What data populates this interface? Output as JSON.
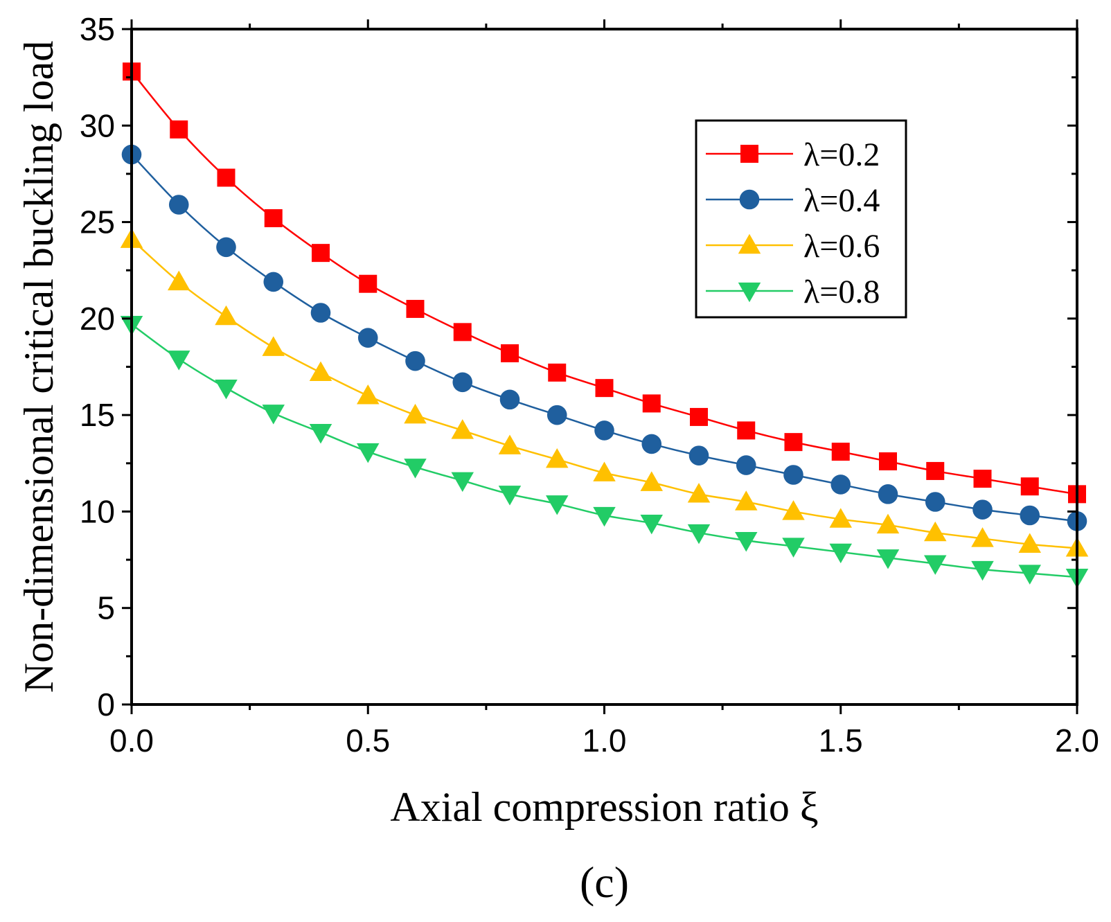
{
  "chart_data": {
    "type": "line",
    "title": "",
    "xlabel": "Axial compression ratio ξ",
    "ylabel": "Non-dimensional critical buckling load",
    "panel_label": "(c)",
    "xlim": [
      0.0,
      2.0
    ],
    "ylim": [
      0,
      35
    ],
    "x_ticks": [
      0.0,
      0.5,
      1.0,
      1.5,
      2.0
    ],
    "x_tick_labels": [
      "0.0",
      "0.5",
      "1.0",
      "1.5",
      "2.0"
    ],
    "y_ticks": [
      0,
      5,
      10,
      15,
      20,
      25,
      30,
      35
    ],
    "y_tick_labels": [
      "0",
      "5",
      "10",
      "15",
      "20",
      "25",
      "30",
      "35"
    ],
    "grid": false,
    "legend_position": "top-right",
    "x": [
      0.0,
      0.1,
      0.2,
      0.3,
      0.4,
      0.5,
      0.6,
      0.7,
      0.8,
      0.9,
      1.0,
      1.1,
      1.2,
      1.3,
      1.4,
      1.5,
      1.6,
      1.7,
      1.8,
      1.9,
      2.0
    ],
    "series": [
      {
        "name": "λ=0.2",
        "color": "#ff0000",
        "marker": "square",
        "values": [
          32.8,
          29.8,
          27.3,
          25.2,
          23.4,
          21.8,
          20.5,
          19.3,
          18.2,
          17.2,
          16.4,
          15.6,
          14.9,
          14.2,
          13.6,
          13.1,
          12.6,
          12.1,
          11.7,
          11.3,
          10.9
        ]
      },
      {
        "name": "λ=0.4",
        "color": "#1f5f9e",
        "marker": "circle",
        "values": [
          28.5,
          25.9,
          23.7,
          21.9,
          20.3,
          19.0,
          17.8,
          16.7,
          15.8,
          15.0,
          14.2,
          13.5,
          12.9,
          12.4,
          11.9,
          11.4,
          10.9,
          10.5,
          10.1,
          9.8,
          9.5
        ]
      },
      {
        "name": "λ=0.6",
        "color": "#ffc000",
        "marker": "triangle-up",
        "values": [
          24.1,
          21.9,
          20.1,
          18.5,
          17.2,
          16.0,
          15.0,
          14.2,
          13.4,
          12.7,
          12.0,
          11.5,
          10.9,
          10.5,
          10.0,
          9.6,
          9.3,
          8.9,
          8.6,
          8.3,
          8.1
        ]
      },
      {
        "name": "λ=0.8",
        "color": "#22cc66",
        "marker": "triangle-down",
        "values": [
          19.7,
          17.9,
          16.4,
          15.1,
          14.1,
          13.1,
          12.3,
          11.6,
          10.9,
          10.4,
          9.8,
          9.4,
          8.9,
          8.5,
          8.2,
          7.9,
          7.6,
          7.3,
          7.0,
          6.8,
          6.6
        ]
      }
    ]
  }
}
